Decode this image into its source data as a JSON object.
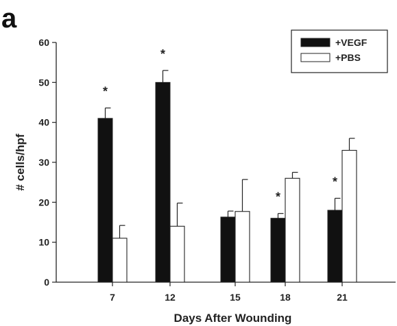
{
  "panel_label": "a",
  "chart_data": {
    "type": "bar",
    "title": "",
    "xlabel": "Days After Wounding",
    "ylabel": "# cells/hpf",
    "ylim": [
      0,
      60
    ],
    "yticks": [
      "0",
      "10",
      "20",
      "30",
      "40",
      "50",
      "60"
    ],
    "categories": [
      "7",
      "12",
      "15",
      "18",
      "21"
    ],
    "series": [
      {
        "name": "+VEGF",
        "color": "#111111",
        "fill": "solid",
        "values": [
          41,
          50,
          16.3,
          16,
          18
        ],
        "errors": [
          2.6,
          3,
          1.5,
          1.2,
          3
        ]
      },
      {
        "name": "+PBS",
        "color": "#ffffff",
        "fill": "outline",
        "values": [
          11,
          14,
          17.7,
          26,
          33
        ],
        "errors": [
          3.2,
          5.8,
          8,
          1.5,
          3
        ]
      }
    ],
    "significance": [
      {
        "category": "7",
        "label": "*"
      },
      {
        "category": "12",
        "label": "*"
      },
      {
        "category": "18",
        "label": "*"
      },
      {
        "category": "21",
        "label": "*"
      }
    ],
    "legend_position": "top-right",
    "grid": false
  }
}
